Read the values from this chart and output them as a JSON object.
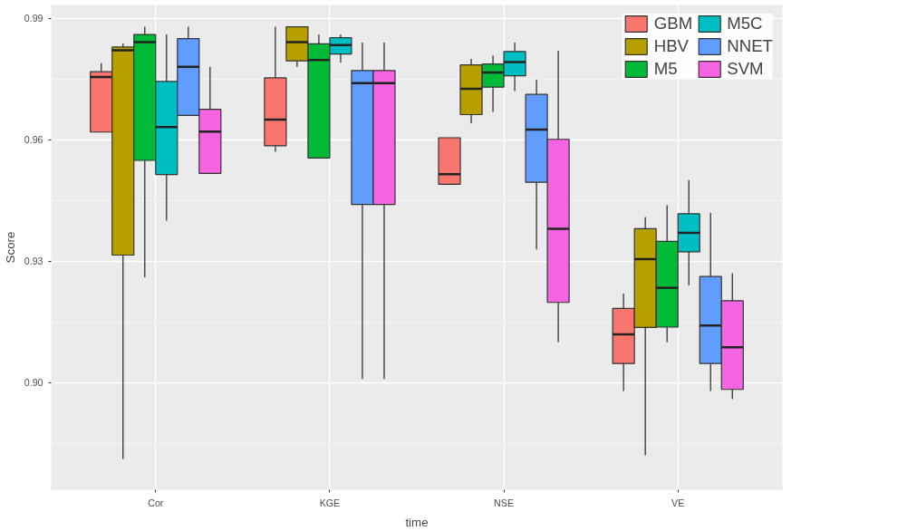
{
  "chart_data": {
    "type": "box",
    "xlabel": "time",
    "ylabel": "Score",
    "categories": [
      "Cor",
      "KGE",
      "NSE",
      "VE"
    ],
    "ylim": [
      0.8735,
      0.9933
    ],
    "yticks": [
      {
        "value": 0.9,
        "label": "0.90"
      },
      {
        "value": 0.93,
        "label": "0.93"
      },
      {
        "value": 0.96,
        "label": "0.96"
      },
      {
        "value": 0.99,
        "label": "0.99"
      }
    ],
    "grid": true,
    "legend": "top right",
    "series": [
      {
        "name": "GBM",
        "color": "#f8766d",
        "boxes": [
          {
            "low": 0.9619,
            "q1": 0.9619,
            "median": 0.9755,
            "q3": 0.9768,
            "high": 0.9789
          },
          {
            "low": 0.957,
            "q1": 0.9585,
            "median": 0.965,
            "q3": 0.9753,
            "high": 0.9879
          },
          {
            "low": 0.949,
            "q1": 0.949,
            "median": 0.9515,
            "q3": 0.9605,
            "high": 0.9605
          },
          {
            "low": 0.8979,
            "q1": 0.9047,
            "median": 0.9119,
            "q3": 0.9183,
            "high": 0.922
          }
        ]
      },
      {
        "name": "HBV",
        "color": "#b79f00",
        "boxes": [
          {
            "low": 0.8811,
            "q1": 0.9315,
            "median": 0.9821,
            "q3": 0.9829,
            "high": 0.9838
          },
          {
            "low": 0.978,
            "q1": 0.9795,
            "median": 0.9841,
            "q3": 0.9879,
            "high": 0.9879
          },
          {
            "low": 0.964,
            "q1": 0.9662,
            "median": 0.9726,
            "q3": 0.9785,
            "high": 0.98
          },
          {
            "low": 0.882,
            "q1": 0.9136,
            "median": 0.9305,
            "q3": 0.938,
            "high": 0.9409
          }
        ]
      },
      {
        "name": "M5",
        "color": "#00ba38",
        "boxes": [
          {
            "low": 0.926,
            "q1": 0.9549,
            "median": 0.9841,
            "q3": 0.986,
            "high": 0.9879
          },
          {
            "low": 0.9555,
            "q1": 0.9555,
            "median": 0.9797,
            "q3": 0.9837,
            "high": 0.986
          },
          {
            "low": 0.9669,
            "q1": 0.973,
            "median": 0.9766,
            "q3": 0.9787,
            "high": 0.9808
          },
          {
            "low": 0.91,
            "q1": 0.9137,
            "median": 0.9234,
            "q3": 0.9349,
            "high": 0.9438
          }
        ]
      },
      {
        "name": "M5C",
        "color": "#00bfc4",
        "boxes": [
          {
            "low": 0.94,
            "q1": 0.9514,
            "median": 0.9631,
            "q3": 0.9744,
            "high": 0.986
          },
          {
            "low": 0.9791,
            "q1": 0.9812,
            "median": 0.9834,
            "q3": 0.9852,
            "high": 0.986
          },
          {
            "low": 0.972,
            "q1": 0.9758,
            "median": 0.9792,
            "q3": 0.9818,
            "high": 0.984
          },
          {
            "low": 0.924,
            "q1": 0.9323,
            "median": 0.937,
            "q3": 0.9417,
            "high": 0.95
          }
        ]
      },
      {
        "name": "NNET",
        "color": "#619cff",
        "boxes": [
          {
            "low": 0.966,
            "q1": 0.966,
            "median": 0.978,
            "q3": 0.985,
            "high": 0.9879
          },
          {
            "low": 0.9009,
            "q1": 0.944,
            "median": 0.974,
            "q3": 0.9771,
            "high": 0.984
          },
          {
            "low": 0.9329,
            "q1": 0.9495,
            "median": 0.9625,
            "q3": 0.9712,
            "high": 0.9749
          },
          {
            "low": 0.8979,
            "q1": 0.9047,
            "median": 0.9141,
            "q3": 0.9262,
            "high": 0.9419
          }
        ]
      },
      {
        "name": "SVM",
        "color": "#f564e3",
        "boxes": [
          {
            "low": 0.9517,
            "q1": 0.9517,
            "median": 0.962,
            "q3": 0.9675,
            "high": 0.978
          },
          {
            "low": 0.9009,
            "q1": 0.944,
            "median": 0.974,
            "q3": 0.9771,
            "high": 0.984
          },
          {
            "low": 0.91,
            "q1": 0.9198,
            "median": 0.938,
            "q3": 0.9601,
            "high": 0.982
          },
          {
            "low": 0.8959,
            "q1": 0.8983,
            "median": 0.9087,
            "q3": 0.9202,
            "high": 0.927
          }
        ]
      }
    ]
  }
}
